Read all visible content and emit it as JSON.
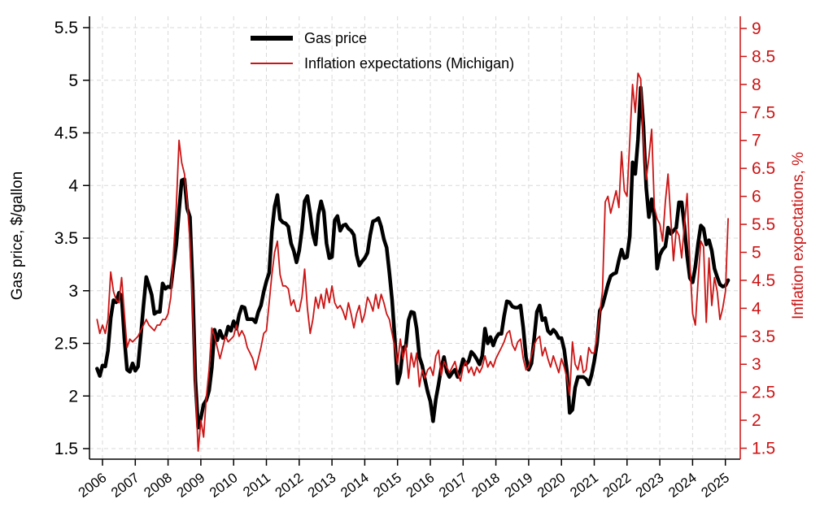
{
  "colors": {
    "gas_line": "#000000",
    "inflation_line": "#cc1414",
    "left_axis": "#000000",
    "right_axis": "#cc1414",
    "grid": "#d9d9d9",
    "background": "#ffffff"
  },
  "legend": {
    "items": [
      {
        "label": "Gas price",
        "color": "#000000"
      },
      {
        "label": "Inflation expectations (Michigan)",
        "color": "#cc1414"
      }
    ]
  },
  "axes": {
    "left": {
      "title": "Gas price, $/gallon"
    },
    "right": {
      "title": "Inflation expectations, %"
    }
  },
  "chart_data": {
    "type": "line",
    "title": "",
    "frequency": "monthly",
    "x_start": "2005-11",
    "x_end": "2025-02",
    "grid": "dashed, horizontal at left-axis ticks and vertical at year ticks",
    "legend_position": "top center, inside plot",
    "x_tick_labels": [
      "2006",
      "2007",
      "2008",
      "2009",
      "2010",
      "2011",
      "2012",
      "2013",
      "2014",
      "2015",
      "2016",
      "2017",
      "2018",
      "2019",
      "2020",
      "2021",
      "2022",
      "2023",
      "2024",
      "2025"
    ],
    "left_axis": {
      "label": "Gas price, $/gallon",
      "range": [
        1.5,
        5.5
      ],
      "tick_step": 0.5,
      "tick_labels": [
        "1.5",
        "2",
        "2.5",
        "3",
        "3.5",
        "4",
        "4.5",
        "5",
        "5.5"
      ]
    },
    "right_axis": {
      "label": "Inflation expectations, %",
      "range": [
        1.5,
        9
      ],
      "tick_step": 0.5,
      "tick_labels": [
        "1.5",
        "2",
        "2.5",
        "3",
        "3.5",
        "4",
        "4.5",
        "5",
        "5.5",
        "6",
        "6.5",
        "7",
        "7.5",
        "8",
        "8.5",
        "9"
      ]
    },
    "series": [
      {
        "name": "Gas price",
        "axis": "left",
        "color": "#000000",
        "width": 4.5,
        "values": [
          2.26,
          2.19,
          2.29,
          2.28,
          2.43,
          2.74,
          2.91,
          2.89,
          2.98,
          2.95,
          2.55,
          2.25,
          2.23,
          2.31,
          2.24,
          2.28,
          2.56,
          2.86,
          3.13,
          3.05,
          2.96,
          2.78,
          2.8,
          2.8,
          3.07,
          3.02,
          3.04,
          3.03,
          3.24,
          3.44,
          3.76,
          4.05,
          4.06,
          3.78,
          3.7,
          3.05,
          2.15,
          1.7,
          1.79,
          1.92,
          1.96,
          2.05,
          2.27,
          2.63,
          2.53,
          2.62,
          2.55,
          2.56,
          2.66,
          2.62,
          2.71,
          2.64,
          2.77,
          2.85,
          2.84,
          2.73,
          2.73,
          2.73,
          2.7,
          2.8,
          2.86,
          2.99,
          3.09,
          3.17,
          3.56,
          3.8,
          3.91,
          3.68,
          3.65,
          3.64,
          3.61,
          3.45,
          3.38,
          3.27,
          3.38,
          3.58,
          3.85,
          3.9,
          3.73,
          3.54,
          3.44,
          3.72,
          3.85,
          3.75,
          3.45,
          3.31,
          3.32,
          3.67,
          3.71,
          3.57,
          3.62,
          3.63,
          3.59,
          3.57,
          3.53,
          3.34,
          3.24,
          3.28,
          3.31,
          3.36,
          3.53,
          3.66,
          3.67,
          3.69,
          3.61,
          3.49,
          3.41,
          3.17,
          2.91,
          2.54,
          2.12,
          2.22,
          2.46,
          2.47,
          2.72,
          2.8,
          2.79,
          2.64,
          2.37,
          2.29,
          2.16,
          2.04,
          1.95,
          1.76,
          1.97,
          2.11,
          2.27,
          2.37,
          2.23,
          2.18,
          2.22,
          2.25,
          2.18,
          2.25,
          2.35,
          2.3,
          2.33,
          2.42,
          2.39,
          2.35,
          2.3,
          2.38,
          2.64,
          2.5,
          2.56,
          2.48,
          2.55,
          2.59,
          2.59,
          2.76,
          2.9,
          2.89,
          2.85,
          2.84,
          2.84,
          2.86,
          2.65,
          2.37,
          2.25,
          2.31,
          2.55,
          2.8,
          2.86,
          2.72,
          2.74,
          2.62,
          2.59,
          2.63,
          2.6,
          2.55,
          2.55,
          2.44,
          2.23,
          1.84,
          1.87,
          2.08,
          2.18,
          2.18,
          2.18,
          2.16,
          2.11,
          2.2,
          2.33,
          2.5,
          2.81,
          2.86,
          2.96,
          3.06,
          3.14,
          3.16,
          3.17,
          3.29,
          3.39,
          3.31,
          3.32,
          3.52,
          4.22,
          4.11,
          4.44,
          4.93,
          4.56,
          3.98,
          3.7,
          3.87,
          3.7,
          3.21,
          3.34,
          3.39,
          3.42,
          3.6,
          3.54,
          3.57,
          3.6,
          3.84,
          3.84,
          3.61,
          3.33,
          3.12,
          3.08,
          3.23,
          3.45,
          3.62,
          3.59,
          3.44,
          3.48,
          3.38,
          3.21,
          3.13,
          3.06,
          3.04,
          3.05,
          3.1
        ]
      },
      {
        "name": "Inflation expectations (Michigan)",
        "axis": "right",
        "color": "#cc1414",
        "width": 1.8,
        "values": [
          3.8,
          3.55,
          3.7,
          3.55,
          3.8,
          4.65,
          4.3,
          4.15,
          4.1,
          4.55,
          3.9,
          3.3,
          3.45,
          3.4,
          3.45,
          3.5,
          3.6,
          3.7,
          3.8,
          3.7,
          3.65,
          3.6,
          3.7,
          3.7,
          3.8,
          3.8,
          3.9,
          4.2,
          5.0,
          5.8,
          7.0,
          6.6,
          6.4,
          5.9,
          5.2,
          4.0,
          2.6,
          1.45,
          2.0,
          1.7,
          2.4,
          2.9,
          3.65,
          3.5,
          3.3,
          3.1,
          3.3,
          3.5,
          3.4,
          3.45,
          3.5,
          3.7,
          3.5,
          3.6,
          3.5,
          3.3,
          3.2,
          3.1,
          2.9,
          3.1,
          3.3,
          3.55,
          3.6,
          4.1,
          4.6,
          5.0,
          5.2,
          4.6,
          4.4,
          4.4,
          4.35,
          4.05,
          4.15,
          3.95,
          3.95,
          4.2,
          4.7,
          4.0,
          3.55,
          3.8,
          4.2,
          4.0,
          4.25,
          4.0,
          4.35,
          4.1,
          4.4,
          4.1,
          4.0,
          4.05,
          3.95,
          3.8,
          4.1,
          3.9,
          3.65,
          3.9,
          4.05,
          3.75,
          3.9,
          4.2,
          4.1,
          3.95,
          4.25,
          4.0,
          4.25,
          4.1,
          3.9,
          3.8,
          3.55,
          3.3,
          3.0,
          3.45,
          3.1,
          3.35,
          2.75,
          3.2,
          2.95,
          3.2,
          2.6,
          2.9,
          2.75,
          2.9,
          2.95,
          2.8,
          3.15,
          3.25,
          2.8,
          3.05,
          2.95,
          2.85,
          2.95,
          3.05,
          2.85,
          2.7,
          2.95,
          3.05,
          2.85,
          2.95,
          2.8,
          2.95,
          2.85,
          2.95,
          3.15,
          2.95,
          3.05,
          2.95,
          3.1,
          3.2,
          3.3,
          3.4,
          3.55,
          3.6,
          3.35,
          3.25,
          3.4,
          3.45,
          3.1,
          2.9,
          2.95,
          3.15,
          3.35,
          3.45,
          3.5,
          3.15,
          3.3,
          3.1,
          2.95,
          3.15,
          3.0,
          2.85,
          3.1,
          2.95,
          2.75,
          2.45,
          3.4,
          3.0,
          2.9,
          3.15,
          2.85,
          2.9,
          3.3,
          3.2,
          3.2,
          3.5,
          3.9,
          4.3,
          5.9,
          6.0,
          5.7,
          5.9,
          6.1,
          5.8,
          6.8,
          6.1,
          6.0,
          7.0,
          8.0,
          7.5,
          8.2,
          8.1,
          7.0,
          6.3,
          6.7,
          7.2,
          5.8,
          5.6,
          5.5,
          5.2,
          5.9,
          6.4,
          5.6,
          4.85,
          5.4,
          5.3,
          4.9,
          5.5,
          6.05,
          4.8,
          3.9,
          3.7,
          4.5,
          5.2,
          5.1,
          3.75,
          4.9,
          4.05,
          4.55,
          4.3,
          3.8,
          4.0,
          4.3,
          5.6
        ]
      }
    ]
  }
}
